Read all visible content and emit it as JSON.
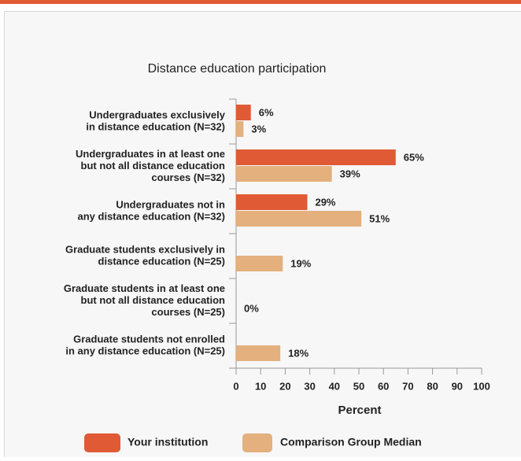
{
  "chart_data": {
    "type": "hbar",
    "title": "Distance education participation",
    "x_label": "Percent",
    "categories": [
      [
        "Undergraduates exclusively",
        "in distance education (N=32)"
      ],
      [
        "Undergraduates in at least one",
        "but not all distance education",
        "courses (N=32)"
      ],
      [
        "Undergraduates not in",
        "any distance education (N=32)"
      ],
      [
        "Graduate students exclusively in",
        "distance education (N=25)"
      ],
      [
        "Graduate students in at least one",
        "but not all distance education",
        "courses (N=25)"
      ],
      [
        "Graduate students not enrolled",
        "in any distance education (N=25)"
      ]
    ],
    "series": [
      {
        "name": "Your institution",
        "color": "#e05a36",
        "values": [
          6,
          65,
          29,
          null,
          null,
          null
        ],
        "value_labels": [
          "6%",
          "65%",
          "29%",
          null,
          null,
          null
        ]
      },
      {
        "name": "Comparison Group Median",
        "color": "#e3b07e",
        "values": [
          3,
          39,
          51,
          19,
          0,
          18
        ],
        "value_labels": [
          "3%",
          "39%",
          "51%",
          "19%",
          "0%",
          "18%"
        ]
      }
    ],
    "xlim": [
      0,
      100
    ],
    "xticks": [
      0,
      10,
      20,
      30,
      40,
      50,
      60,
      70,
      80,
      90,
      100
    ]
  }
}
